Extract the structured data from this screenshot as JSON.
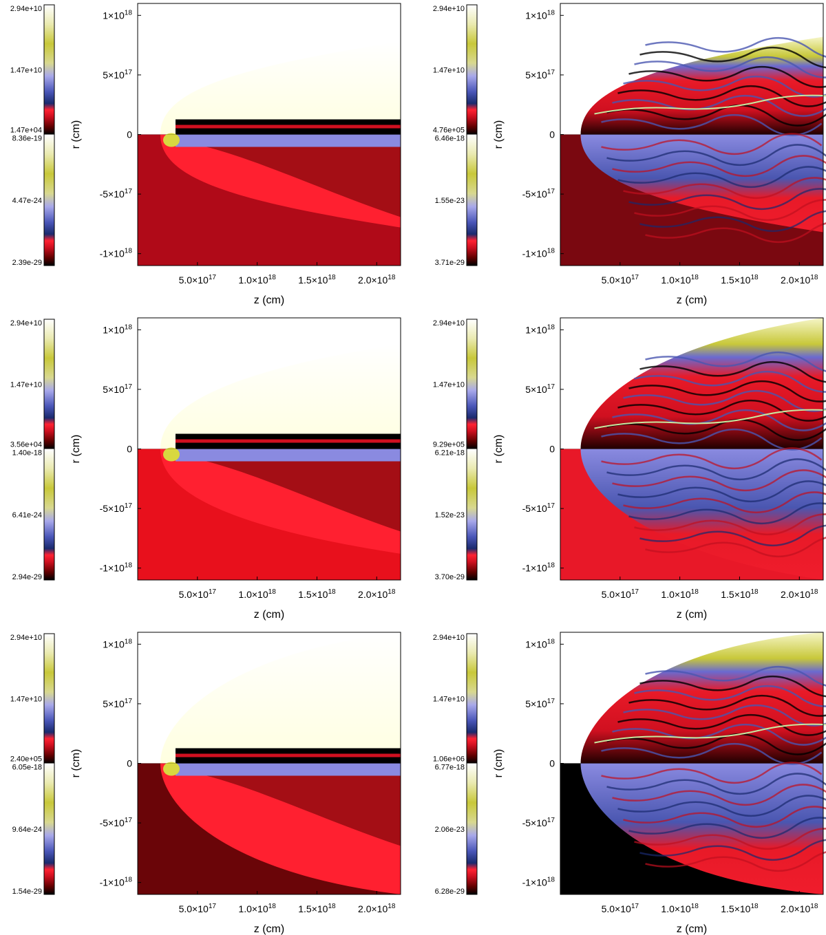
{
  "chart_data": [
    {
      "type": "heatmap",
      "panel": "row1-left",
      "xlabel": "z (cm)",
      "ylabel": "r (cm)",
      "xlim": [
        0,
        2.2e+18
      ],
      "ylim": [
        -1.1e+18,
        1.1e+18
      ],
      "x_ticks": [
        "5.0×10^17",
        "1.0×10^18",
        "1.5×10^18",
        "2.0×10^18"
      ],
      "y_ticks": [
        "1×10^18",
        "5×10^17",
        "0",
        "-5×10^17",
        "-1×10^18"
      ],
      "colorbar_upper": [
        "2.94e+10",
        "1.47e+10",
        "1.47e+04"
      ],
      "colorbar_lower": [
        "8.36e-19",
        "4.47e-24",
        "2.39e-29"
      ]
    },
    {
      "type": "heatmap",
      "panel": "row1-right",
      "xlabel": "z (cm)",
      "ylabel": "r (cm)",
      "xlim": [
        0,
        2.2e+18
      ],
      "ylim": [
        -1.1e+18,
        1.1e+18
      ],
      "x_ticks": [
        "5.0×10^17",
        "1.0×10^18",
        "1.5×10^18",
        "2.0×10^18"
      ],
      "y_ticks": [
        "1×10^18",
        "5×10^17",
        "0",
        "-5×10^17",
        "-1×10^18"
      ],
      "colorbar_upper": [
        "2.94e+10",
        "1.47e+10",
        "4.76e+05"
      ],
      "colorbar_lower": [
        "6.46e-18",
        "1.55e-23",
        "3.71e-29"
      ]
    },
    {
      "type": "heatmap",
      "panel": "row2-left",
      "xlabel": "z (cm)",
      "ylabel": "r (cm)",
      "xlim": [
        0,
        2.2e+18
      ],
      "ylim": [
        -1.1e+18,
        1.1e+18
      ],
      "x_ticks": [
        "5.0×10^17",
        "1.0×10^18",
        "1.5×10^18",
        "2.0×10^18"
      ],
      "y_ticks": [
        "1×10^18",
        "5×10^17",
        "0",
        "-5×10^17",
        "-1×10^18"
      ],
      "colorbar_upper": [
        "2.94e+10",
        "1.47e+10",
        "3.56e+04"
      ],
      "colorbar_lower": [
        "1.40e-18",
        "6.41e-24",
        "2.94e-29"
      ]
    },
    {
      "type": "heatmap",
      "panel": "row2-right",
      "xlabel": "z (cm)",
      "ylabel": "r (cm)",
      "xlim": [
        0,
        2.2e+18
      ],
      "ylim": [
        -1.1e+18,
        1.1e+18
      ],
      "x_ticks": [
        "5.0×10^17",
        "1.0×10^18",
        "1.5×10^18",
        "2.0×10^18"
      ],
      "y_ticks": [
        "1×10^18",
        "5×10^17",
        "0",
        "-5×10^17",
        "-1×10^18"
      ],
      "colorbar_upper": [
        "2.94e+10",
        "1.47e+10",
        "9.29e+05"
      ],
      "colorbar_lower": [
        "6.21e-18",
        "1.52e-23",
        "3.70e-29"
      ]
    },
    {
      "type": "heatmap",
      "panel": "row3-left",
      "xlabel": "z (cm)",
      "ylabel": "r (cm)",
      "xlim": [
        0,
        2.2e+18
      ],
      "ylim": [
        -1.1e+18,
        1.1e+18
      ],
      "x_ticks": [
        "5.0×10^17",
        "1.0×10^18",
        "1.5×10^18",
        "2.0×10^18"
      ],
      "y_ticks": [
        "1×10^18",
        "5×10^17",
        "0",
        "-5×10^17",
        "-1×10^18"
      ],
      "colorbar_upper": [
        "2.94e+10",
        "1.47e+10",
        "2.40e+05"
      ],
      "colorbar_lower": [
        "6.05e-18",
        "9.64e-24",
        "1.54e-29"
      ]
    },
    {
      "type": "heatmap",
      "panel": "row3-right",
      "xlabel": "z (cm)",
      "ylabel": "r (cm)",
      "xlim": [
        0,
        2.2e+18
      ],
      "ylim": [
        -1.1e+18,
        1.1e+18
      ],
      "x_ticks": [
        "5.0×10^17",
        "1.0×10^18",
        "1.5×10^18",
        "2.0×10^18"
      ],
      "y_ticks": [
        "1×10^18",
        "5×10^17",
        "0",
        "-5×10^17",
        "-1×10^18"
      ],
      "colorbar_upper": [
        "2.94e+10",
        "1.47e+10",
        "1.06e+06"
      ],
      "colorbar_lower": [
        "6.77e-18",
        "2.06e-23",
        "6.28e-29"
      ]
    }
  ],
  "colors": {
    "colormap": [
      "#000000",
      "#5a0000",
      "#c0101a",
      "#ff2030",
      "#1a2a70",
      "#5560c0",
      "#a8a8e8",
      "#c8c840",
      "#f0f0b0",
      "#ffffff"
    ],
    "lower_background": [
      "#b00a18",
      "#7a0810",
      "#e8101c",
      "#e81828",
      "#6a0508",
      "#000000"
    ]
  }
}
